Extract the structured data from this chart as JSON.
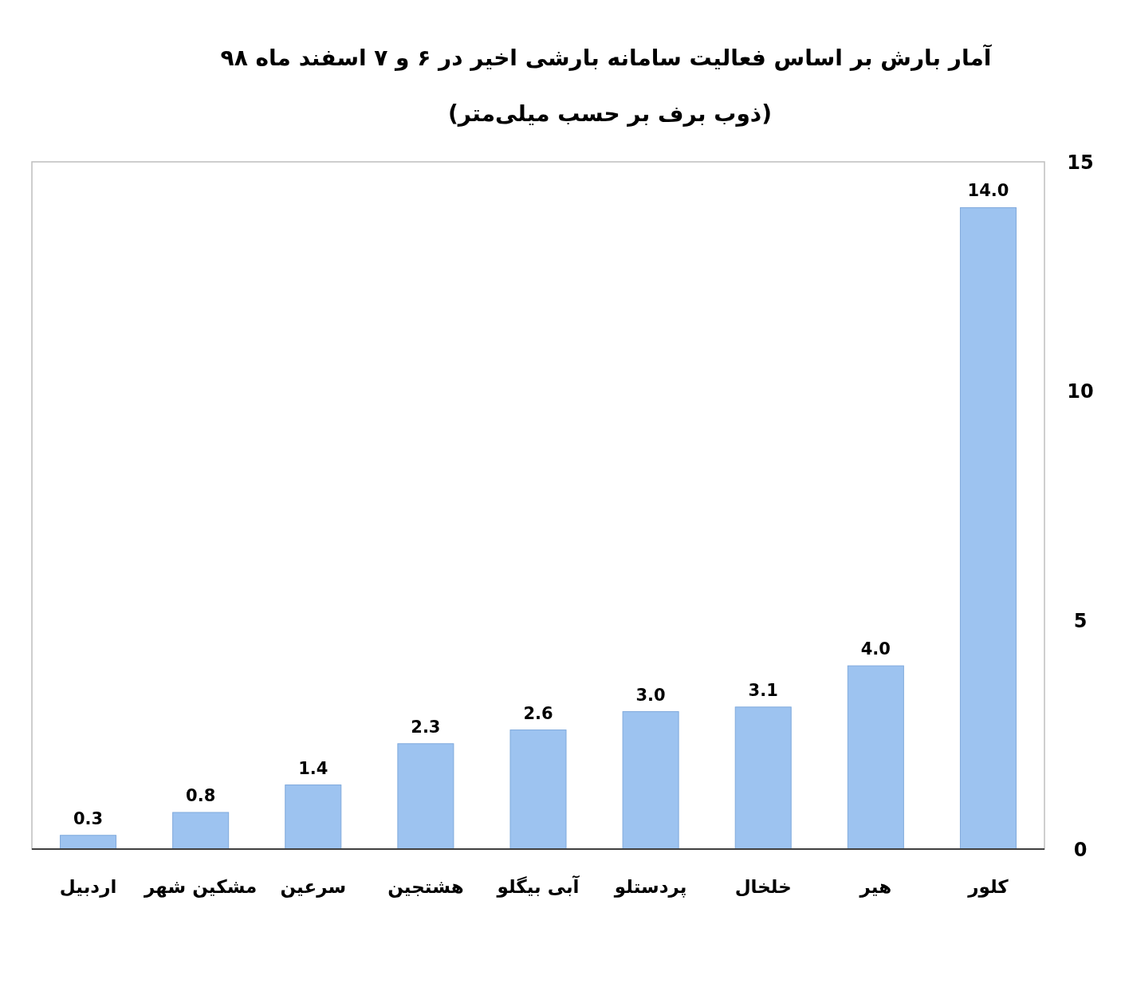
{
  "chart_data": {
    "type": "bar",
    "title": "آمار بارش بر اساس فعالیت سامانه بارشی اخیر  در ۶ و ۷ اسفند ماه ۹۸",
    "subtitle": "(ذوب برف بر حسب میلی‌متر)",
    "categories": [
      "اردبیل",
      "مشکین شهر",
      "سرعین",
      "هشتجین",
      "آبی بیگلو",
      "پردستلو",
      "خلخال",
      "هیر",
      "کلور"
    ],
    "values": [
      0.3,
      0.8,
      1.4,
      2.3,
      2.6,
      3.0,
      3.1,
      4.0,
      14.0
    ],
    "value_labels": [
      "0.3",
      "0.8",
      "1.4",
      "2.3",
      "2.6",
      "3.0",
      "3.1",
      "4.0",
      "14.0"
    ],
    "color": "#9dc3f0",
    "ylim": [
      0,
      15
    ],
    "yticks": [
      0,
      5,
      10,
      15
    ],
    "grid": false
  }
}
